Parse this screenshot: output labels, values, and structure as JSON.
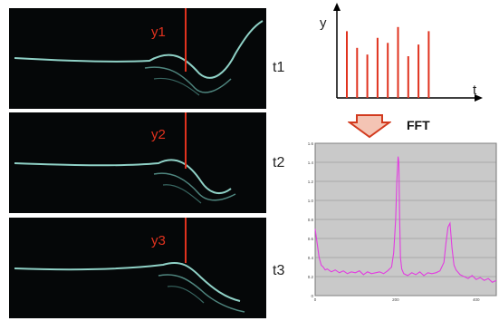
{
  "frames": [
    {
      "label": "y1",
      "time": "t1"
    },
    {
      "label": "y2",
      "time": "t2"
    },
    {
      "label": "y3",
      "time": "t3"
    }
  ],
  "colors": {
    "cut_line": "#e0321e",
    "wave": "#9ee8dc",
    "fft_line": "#e23ce0",
    "plot_bg": "#c9c9c9",
    "arrow_fill": "#f4c4b4",
    "arrow_stroke": "#d23a1e"
  },
  "arrow_label": "FFT",
  "chart_data": [
    {
      "type": "bar",
      "xlabel": "t",
      "ylabel": "y",
      "values": [
        0.8,
        0.6,
        0.52,
        0.72,
        0.66,
        0.85,
        0.5,
        0.64,
        0.8
      ],
      "ylim": [
        0,
        1
      ]
    },
    {
      "type": "line",
      "xlim": [
        0,
        450
      ],
      "ylim": [
        0,
        1.6
      ],
      "y_ticks": [
        "0",
        "0.2",
        "0.4",
        "0.6",
        "0.8",
        "1.0",
        "1.2",
        "1.4",
        "1.6"
      ],
      "x_ticks": [
        "0",
        "200",
        "400"
      ],
      "grid": true,
      "series": [
        {
          "x": [
            0,
            5,
            10,
            15,
            20,
            25,
            30,
            40,
            50,
            60,
            70,
            80,
            90,
            100,
            110,
            120,
            130,
            140,
            150,
            160,
            170,
            180,
            190,
            195,
            200,
            203,
            206,
            208,
            210,
            212,
            215,
            220,
            230,
            240,
            250,
            260,
            270,
            280,
            290,
            300,
            310,
            320,
            325,
            330,
            335,
            340,
            345,
            350,
            360,
            370,
            380,
            390,
            400,
            410,
            420,
            430,
            440,
            450
          ],
          "y": [
            0.7,
            0.55,
            0.4,
            0.32,
            0.3,
            0.27,
            0.28,
            0.25,
            0.27,
            0.24,
            0.26,
            0.23,
            0.25,
            0.24,
            0.26,
            0.22,
            0.25,
            0.23,
            0.24,
            0.25,
            0.23,
            0.26,
            0.3,
            0.45,
            0.8,
            1.2,
            1.46,
            1.4,
            0.8,
            0.4,
            0.28,
            0.23,
            0.21,
            0.24,
            0.22,
            0.25,
            0.21,
            0.24,
            0.23,
            0.24,
            0.26,
            0.35,
            0.55,
            0.72,
            0.76,
            0.5,
            0.32,
            0.27,
            0.22,
            0.2,
            0.18,
            0.21,
            0.17,
            0.19,
            0.16,
            0.18,
            0.14,
            0.16
          ]
        }
      ]
    }
  ]
}
